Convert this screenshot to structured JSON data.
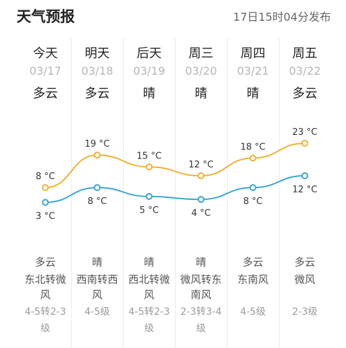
{
  "header": {
    "title": "天气预报",
    "published": "17日15时04分发布"
  },
  "colors": {
    "high": "#f0b035",
    "low": "#3aa5d4",
    "separator": "#ececec"
  },
  "days": [
    {
      "day": "今天",
      "date": "03/17",
      "weather": "多云",
      "night_weather": "多云",
      "wind_lines": [
        "东北转微",
        "风"
      ],
      "wind_level_lines": [
        "4-5转2-3",
        "级"
      ]
    },
    {
      "day": "明天",
      "date": "03/18",
      "weather": "多云",
      "night_weather": "晴",
      "wind_lines": [
        "西南转西",
        "风"
      ],
      "wind_level_lines": [
        "4-5级"
      ]
    },
    {
      "day": "后天",
      "date": "03/19",
      "weather": "晴",
      "night_weather": "晴",
      "wind_lines": [
        "西北转微",
        "风"
      ],
      "wind_level_lines": [
        "4-5转2-3",
        "级"
      ]
    },
    {
      "day": "周三",
      "date": "03/20",
      "weather": "晴",
      "night_weather": "晴",
      "wind_lines": [
        "微风转东",
        "南风"
      ],
      "wind_level_lines": [
        "2-3转3-4",
        "级"
      ]
    },
    {
      "day": "周四",
      "date": "03/21",
      "weather": "晴",
      "night_weather": "多云",
      "wind_lines": [
        "东南风"
      ],
      "wind_level_lines": [
        "4-5级"
      ]
    },
    {
      "day": "周五",
      "date": "03/22",
      "weather": "多云",
      "night_weather": "多云",
      "wind_lines": [
        "微风"
      ],
      "wind_level_lines": [
        "2-3级"
      ]
    }
  ],
  "chart_data": {
    "type": "line",
    "x": [
      "今天",
      "明天",
      "后天",
      "周三",
      "周四",
      "周五"
    ],
    "unit": "°C",
    "series": [
      {
        "values": [
          8,
          19,
          15,
          12,
          18,
          23
        ],
        "color": "#f0b035",
        "labels": [
          "8 °C",
          "19 °C",
          "15 °C",
          "12 °C",
          "18 °C",
          "23 °C"
        ]
      },
      {
        "values": [
          3,
          8,
          5,
          4,
          8,
          12
        ],
        "color": "#3aa5d4",
        "labels": [
          "3 °C",
          "8 °C",
          "5 °C",
          "4 °C",
          "8 °C",
          "12 °C"
        ]
      }
    ]
  }
}
